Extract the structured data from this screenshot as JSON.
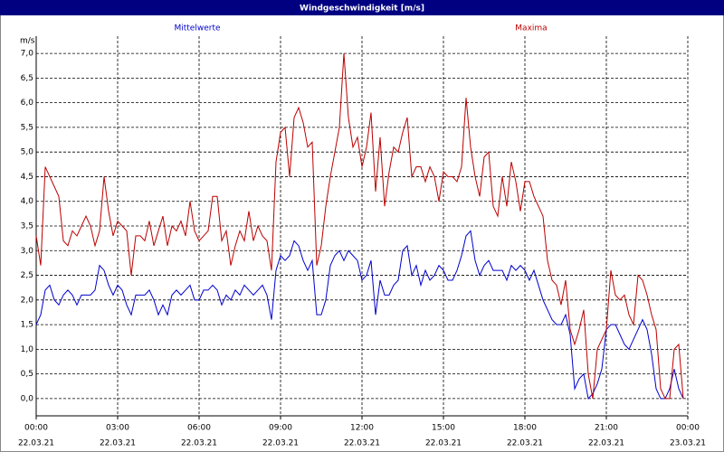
{
  "chart_data": {
    "type": "line",
    "title": "Windgeschwindigkeit [m/s]",
    "y_label": "m/s",
    "x": [
      0,
      10,
      20,
      30,
      40,
      50,
      60,
      70,
      80,
      90,
      100,
      110,
      120,
      130,
      140,
      150,
      160,
      170,
      180,
      190,
      200,
      210,
      220,
      230,
      240,
      250,
      260,
      270,
      280,
      290,
      300,
      310,
      320,
      330,
      340,
      350,
      360,
      370,
      380,
      390,
      400,
      410,
      420,
      430,
      440,
      450,
      460,
      470,
      480,
      490,
      500,
      510,
      520,
      530,
      540,
      550,
      560,
      570,
      580,
      590,
      600,
      610,
      620,
      630,
      640,
      650,
      660,
      670,
      680,
      690,
      700,
      710,
      720,
      730,
      740,
      750,
      760,
      770,
      780,
      790,
      800,
      810,
      820,
      830,
      840,
      850,
      860,
      870,
      880,
      890,
      900,
      910,
      920,
      930,
      940,
      950,
      960,
      970,
      980,
      990,
      1000,
      1010,
      1020,
      1030,
      1040,
      1050,
      1060,
      1070,
      1080,
      1090,
      1100,
      1110,
      1120,
      1130,
      1140,
      1150,
      1160,
      1170,
      1180,
      1190,
      1200,
      1210,
      1220,
      1230,
      1240,
      1250,
      1260,
      1270,
      1280,
      1290,
      1300,
      1310,
      1320,
      1330,
      1340,
      1350,
      1360,
      1370,
      1380,
      1390,
      1400,
      1410,
      1420,
      1430
    ],
    "series": [
      {
        "name": "Mittelwerte",
        "color": "#0000cc",
        "values": [
          1.5,
          1.7,
          2.2,
          2.3,
          2.0,
          1.9,
          2.1,
          2.2,
          2.1,
          1.9,
          2.1,
          2.1,
          2.1,
          2.2,
          2.7,
          2.6,
          2.3,
          2.1,
          2.3,
          2.2,
          1.9,
          1.7,
          2.1,
          2.1,
          2.1,
          2.2,
          2.0,
          1.7,
          1.9,
          1.7,
          2.1,
          2.2,
          2.1,
          2.2,
          2.3,
          2.0,
          2.0,
          2.2,
          2.2,
          2.3,
          2.2,
          1.9,
          2.1,
          2.0,
          2.2,
          2.1,
          2.3,
          2.2,
          2.1,
          2.2,
          2.3,
          2.1,
          1.6,
          2.6,
          2.9,
          2.8,
          2.9,
          3.2,
          3.1,
          2.8,
          2.6,
          2.8,
          1.7,
          1.7,
          2.0,
          2.7,
          2.9,
          3.0,
          2.8,
          3.0,
          2.9,
          2.8,
          2.4,
          2.5,
          2.8,
          1.7,
          2.4,
          2.1,
          2.1,
          2.3,
          2.4,
          3.0,
          3.1,
          2.5,
          2.7,
          2.3,
          2.6,
          2.4,
          2.5,
          2.7,
          2.6,
          2.4,
          2.4,
          2.6,
          2.9,
          3.3,
          3.4,
          2.8,
          2.5,
          2.7,
          2.8,
          2.6,
          2.6,
          2.6,
          2.4,
          2.7,
          2.6,
          2.7,
          2.6,
          2.4,
          2.6,
          2.3,
          2.0,
          1.8,
          1.6,
          1.5,
          1.5,
          1.7,
          1.3,
          0.2,
          0.4,
          0.5,
          0.0,
          0.1,
          0.3,
          0.6,
          1.4,
          1.5,
          1.5,
          1.3,
          1.1,
          1.0,
          1.2,
          1.4,
          1.6,
          1.4,
          0.9,
          0.2,
          0.0,
          0.0,
          0.2,
          0.6,
          0.2,
          0.0
        ]
      },
      {
        "name": "Maxima",
        "color": "#bb0000",
        "values": [
          3.3,
          2.7,
          4.7,
          4.5,
          4.3,
          4.1,
          3.2,
          3.1,
          3.4,
          3.3,
          3.5,
          3.7,
          3.5,
          3.1,
          3.4,
          4.5,
          3.8,
          3.3,
          3.6,
          3.5,
          3.4,
          2.5,
          3.3,
          3.3,
          3.2,
          3.6,
          3.1,
          3.4,
          3.7,
          3.1,
          3.5,
          3.4,
          3.6,
          3.3,
          4.0,
          3.4,
          3.2,
          3.3,
          3.4,
          4.1,
          4.1,
          3.2,
          3.4,
          2.7,
          3.1,
          3.4,
          3.2,
          3.8,
          3.2,
          3.5,
          3.3,
          3.2,
          2.6,
          4.8,
          5.4,
          5.5,
          4.5,
          5.7,
          5.9,
          5.6,
          5.1,
          5.2,
          2.7,
          3.1,
          3.9,
          4.5,
          5.0,
          5.5,
          7.0,
          5.7,
          5.1,
          5.3,
          4.7,
          5.1,
          5.8,
          4.2,
          5.3,
          3.9,
          4.6,
          5.1,
          5.0,
          5.4,
          5.7,
          4.5,
          4.7,
          4.7,
          4.4,
          4.7,
          4.5,
          4.0,
          4.6,
          4.5,
          4.5,
          4.4,
          4.7,
          6.1,
          5.1,
          4.5,
          4.1,
          4.9,
          5.0,
          3.9,
          3.7,
          4.5,
          3.9,
          4.8,
          4.4,
          3.8,
          4.4,
          4.4,
          4.1,
          3.9,
          3.7,
          2.8,
          2.4,
          2.3,
          1.9,
          2.4,
          1.4,
          1.1,
          1.4,
          1.8,
          0.5,
          0.0,
          1.0,
          1.2,
          1.4,
          2.6,
          2.1,
          2.0,
          2.1,
          1.7,
          1.5,
          2.5,
          2.4,
          2.1,
          1.7,
          1.4,
          0.2,
          0.0,
          0.0,
          1.0,
          1.1,
          0.0
        ]
      }
    ],
    "xlim": [
      0,
      1440
    ],
    "xticks": [
      {
        "value": 0,
        "label": "00:00",
        "date": "22.03.21"
      },
      {
        "value": 180,
        "label": "03:00",
        "date": "22.03.21"
      },
      {
        "value": 360,
        "label": "06:00",
        "date": "22.03.21"
      },
      {
        "value": 540,
        "label": "09:00",
        "date": "22.03.21"
      },
      {
        "value": 720,
        "label": "12:00",
        "date": "22.03.21"
      },
      {
        "value": 900,
        "label": "15:00",
        "date": "22.03.21"
      },
      {
        "value": 1080,
        "label": "18:00",
        "date": "22.03.21"
      },
      {
        "value": 1260,
        "label": "21:00",
        "date": "22.03.21"
      },
      {
        "value": 1440,
        "label": "00:00",
        "date": "23.03.21"
      }
    ],
    "ylim": [
      -0.35,
      7.35
    ],
    "yticks": [
      {
        "value": 0,
        "label": "0,0"
      },
      {
        "value": 0.5,
        "label": "0,5"
      },
      {
        "value": 1,
        "label": "1,0"
      },
      {
        "value": 1.5,
        "label": "1,5"
      },
      {
        "value": 2,
        "label": "2,0"
      },
      {
        "value": 2.5,
        "label": "2,5"
      },
      {
        "value": 3,
        "label": "3,0"
      },
      {
        "value": 3.5,
        "label": "3,5"
      },
      {
        "value": 4,
        "label": "4,0"
      },
      {
        "value": 4.5,
        "label": "4,5"
      },
      {
        "value": 5,
        "label": "5,0"
      },
      {
        "value": 5.5,
        "label": "5,5"
      },
      {
        "value": 6,
        "label": "6,0"
      },
      {
        "value": 6.5,
        "label": "6,5"
      },
      {
        "value": 7,
        "label": "7,0"
      }
    ],
    "grid": true
  }
}
